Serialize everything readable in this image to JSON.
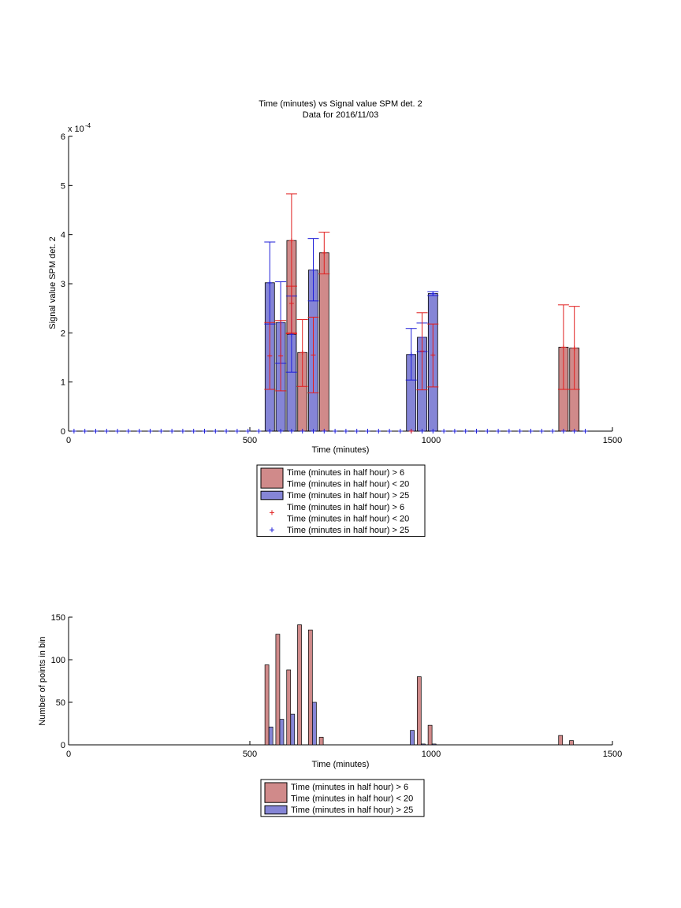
{
  "colors": {
    "red_fill": "#d08a8a",
    "blue_fill": "#8585d6",
    "red_err": "#e01e1e",
    "blue_err": "#1e1ed8",
    "axis": "#000000"
  },
  "chart_data": [
    {
      "type": "bar",
      "title": "Time (minutes) vs Signal value SPM det. 2",
      "subtitle": "Data for 2016/11/03",
      "xlabel": "Time (minutes)",
      "ylabel": "Signal value SPM det. 2",
      "y_exponent_label": "x 10",
      "y_exponent_power": "-4",
      "xlim": [
        0,
        1500
      ],
      "ylim": [
        0,
        6
      ],
      "xticks": [
        0,
        500,
        1000,
        1500
      ],
      "yticks": [
        0,
        1,
        2,
        3,
        4,
        5,
        6
      ],
      "series": [
        {
          "name": "Time (minutes in half hour) > 6\nTime (minutes in half hour) < 20",
          "color": "red",
          "bars": [
            {
              "x": 615,
              "y": 3.88,
              "err_low": 1.98,
              "err_high": 4.83
            },
            {
              "x": 645,
              "y": 1.6,
              "err_low": 0.91,
              "err_high": 2.27
            },
            {
              "x": 705,
              "y": 3.63,
              "err_low": 3.2,
              "err_high": 4.05
            },
            {
              "x": 1365,
              "y": 1.71,
              "err_low": 0.85,
              "err_high": 2.57
            },
            {
              "x": 1395,
              "y": 1.69,
              "err_low": 0.85,
              "err_high": 2.54
            }
          ]
        },
        {
          "name": "Time (minutes in half hour) > 25",
          "color": "blue",
          "bars": [
            {
              "x": 555,
              "y": 3.02,
              "err_low": 2.18,
              "err_high": 3.85
            },
            {
              "x": 585,
              "y": 2.21,
              "err_low": 1.38,
              "err_high": 3.04
            },
            {
              "x": 615,
              "y": 1.97,
              "err_low": 1.2,
              "err_high": 2.75
            },
            {
              "x": 675,
              "y": 3.28,
              "err_low": 2.65,
              "err_high": 3.92
            },
            {
              "x": 945,
              "y": 1.56,
              "err_low": 1.04,
              "err_high": 2.09
            },
            {
              "x": 975,
              "y": 1.91,
              "err_low": 1.62,
              "err_high": 2.2
            },
            {
              "x": 1005,
              "y": 2.8,
              "err_low": 2.76,
              "err_high": 2.84
            }
          ]
        }
      ],
      "error_overlays": [
        {
          "x": 555,
          "y": 1.53,
          "err_low": 0.85,
          "err_high": 2.21,
          "color": "red"
        },
        {
          "x": 585,
          "y": 1.53,
          "err_low": 0.82,
          "err_high": 2.25,
          "color": "red"
        },
        {
          "x": 615,
          "y": 2.6,
          "err_low": 2.0,
          "err_high": 2.95,
          "color": "red"
        },
        {
          "x": 675,
          "y": 1.55,
          "err_low": 0.78,
          "err_high": 2.32,
          "color": "red"
        },
        {
          "x": 975,
          "y": 1.63,
          "err_low": 0.84,
          "err_high": 2.41,
          "color": "red"
        },
        {
          "x": 1005,
          "y": 1.55,
          "err_low": 0.9,
          "err_high": 2.18,
          "color": "red"
        }
      ],
      "markers": {
        "blue_x": [
          15,
          45,
          75,
          105,
          135,
          165,
          195,
          225,
          255,
          285,
          315,
          345,
          375,
          405,
          435,
          465,
          495,
          525,
          555,
          585,
          615,
          645,
          675,
          705,
          735,
          765,
          795,
          825,
          855,
          885,
          915,
          945,
          975,
          1005,
          1035,
          1065,
          1095,
          1125,
          1155,
          1185,
          1215,
          1245,
          1275,
          1305,
          1335,
          1365,
          1395,
          1425
        ],
        "blue_y": 0,
        "red_x": [
          945
        ],
        "red_y": 0
      },
      "legend": {
        "placement": "below",
        "entries": [
          {
            "kind": "patch",
            "color": "red",
            "lines": [
              "Time (minutes in half hour) > 6",
              "Time (minutes in half hour) < 20"
            ]
          },
          {
            "kind": "patch",
            "color": "blue",
            "lines": [
              "Time (minutes in half hour) > 25"
            ]
          },
          {
            "kind": "marker",
            "color": "red",
            "lines": [
              "Time (minutes in half hour) > 6",
              "Time (minutes in half hour) < 20"
            ]
          },
          {
            "kind": "marker",
            "color": "blue",
            "lines": [
              "Time (minutes in half hour) > 25"
            ]
          }
        ]
      }
    },
    {
      "type": "bar",
      "xlabel": "Time (minutes)",
      "ylabel": "Number of points in bin",
      "xlim": [
        0,
        1500
      ],
      "ylim": [
        0,
        150
      ],
      "xticks": [
        0,
        500,
        1000,
        1500
      ],
      "yticks": [
        0,
        50,
        100,
        150
      ],
      "series": [
        {
          "name": "Time (minutes in half hour) > 6\nTime (minutes in half hour) < 20",
          "color": "red",
          "bars": [
            {
              "x": 547,
              "y": 94
            },
            {
              "x": 577,
              "y": 130
            },
            {
              "x": 607,
              "y": 88
            },
            {
              "x": 637,
              "y": 141
            },
            {
              "x": 667,
              "y": 135
            },
            {
              "x": 697,
              "y": 9
            },
            {
              "x": 967,
              "y": 80
            },
            {
              "x": 997,
              "y": 23
            },
            {
              "x": 1357,
              "y": 11
            },
            {
              "x": 1387,
              "y": 5
            }
          ]
        },
        {
          "name": "Time (minutes in half hour) > 25",
          "color": "blue",
          "bars": [
            {
              "x": 558,
              "y": 21
            },
            {
              "x": 588,
              "y": 30
            },
            {
              "x": 618,
              "y": 36
            },
            {
              "x": 678,
              "y": 50
            },
            {
              "x": 948,
              "y": 17
            },
            {
              "x": 978,
              "y": 1
            },
            {
              "x": 1008,
              "y": 1
            }
          ]
        }
      ],
      "legend": {
        "placement": "below",
        "entries": [
          {
            "kind": "patch",
            "color": "red",
            "lines": [
              "Time (minutes in half hour) > 6",
              "Time (minutes in half hour) < 20"
            ]
          },
          {
            "kind": "patch",
            "color": "blue",
            "lines": [
              "Time (minutes in half hour) > 25"
            ]
          }
        ]
      }
    }
  ]
}
